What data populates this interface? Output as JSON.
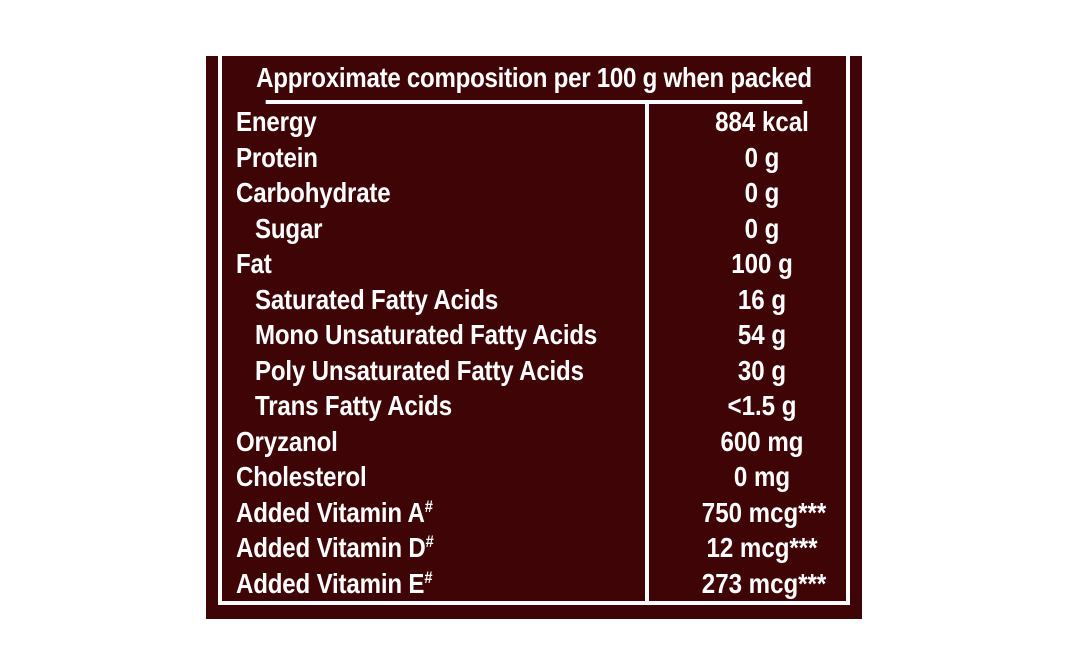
{
  "table": {
    "header": "Approximate composition per 100 g when packed",
    "rows": [
      {
        "label": "Energy",
        "value": "884 kcal",
        "indent": false
      },
      {
        "label": "Protein",
        "value": "0 g",
        "indent": false
      },
      {
        "label": "Carbohydrate",
        "value": "0 g",
        "indent": false
      },
      {
        "label": "Sugar",
        "value": "0 g",
        "indent": true
      },
      {
        "label": "Fat",
        "value": "100 g",
        "indent": false
      },
      {
        "label": "Saturated Fatty Acids",
        "value": "16 g",
        "indent": true
      },
      {
        "label": "Mono Unsaturated Fatty Acids",
        "value": "54 g",
        "indent": true
      },
      {
        "label": "Poly Unsaturated Fatty Acids",
        "value": "30 g",
        "indent": true
      },
      {
        "label": "Trans Fatty Acids",
        "value": "<1.5 g",
        "indent": true
      },
      {
        "label": "Oryzanol",
        "value": "600 mg",
        "indent": false
      },
      {
        "label": "Cholesterol",
        "value": "0 mg",
        "indent": false
      },
      {
        "label": "Added Vitamin A",
        "mark": "#",
        "value": "750 mcg***",
        "indent": false
      },
      {
        "label": "Added Vitamin D",
        "mark": "#",
        "value": "12 mcg***",
        "indent": false
      },
      {
        "label": "Added Vitamin E",
        "mark": "#",
        "value": "273 mcg***",
        "indent": false
      }
    ]
  },
  "colors": {
    "background": "#3f0506",
    "text": "#ffffff",
    "page": "#ffffff"
  }
}
